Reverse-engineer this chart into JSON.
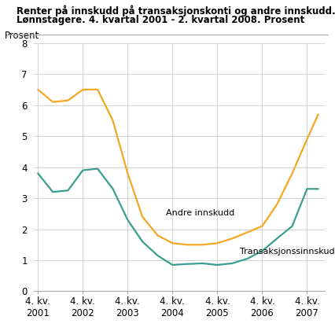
{
  "title_line1": "Renter på innskudd på transaksjonskonti og andre innskudd.",
  "title_line2": "Lønnstagere. 4. kvartal 2001 - 2. kvartal 2008. Prosent",
  "ylabel": "Prosent",
  "ylim": [
    0,
    8
  ],
  "yticks": [
    0,
    1,
    2,
    3,
    4,
    5,
    6,
    7,
    8
  ],
  "andre_innskudd_label": "Andre innskudd",
  "transaksjons_label": "Transaksjonssinnskudd",
  "andre_color": "#F5A623",
  "trans_color": "#3A9E8F",
  "x_tick_labels": [
    "4. kv.\n2001",
    "4. kv.\n2002",
    "4. kv.\n2003",
    "4. kv.\n2004",
    "4. kv.\n2005",
    "4. kv.\n2006",
    "4. kv.\n2007"
  ],
  "andre_x": [
    0,
    0.33,
    0.67,
    1.0,
    1.33,
    1.67,
    2.0,
    2.33,
    2.67,
    3.0,
    3.33,
    3.67,
    4.0,
    4.33,
    4.67,
    5.0,
    5.33,
    5.67,
    6.0,
    6.25
  ],
  "andre_y": [
    6.5,
    6.1,
    6.15,
    6.5,
    6.5,
    5.5,
    3.8,
    2.4,
    1.8,
    1.55,
    1.5,
    1.5,
    1.55,
    1.7,
    1.9,
    2.1,
    2.8,
    3.8,
    4.9,
    5.7
  ],
  "trans_x": [
    0,
    0.33,
    0.67,
    1.0,
    1.33,
    1.67,
    2.0,
    2.33,
    2.67,
    3.0,
    3.33,
    3.67,
    4.0,
    4.33,
    4.67,
    5.0,
    5.33,
    5.67,
    6.0,
    6.25
  ],
  "trans_y": [
    3.8,
    3.2,
    3.25,
    3.9,
    3.95,
    3.3,
    2.3,
    1.6,
    1.15,
    0.85,
    0.88,
    0.9,
    0.85,
    0.9,
    1.05,
    1.3,
    1.7,
    2.1,
    3.3,
    3.3
  ],
  "x_tick_positions": [
    0,
    1,
    2,
    3,
    4,
    5,
    6
  ],
  "background_color": "#ffffff",
  "grid_color": "#cccccc",
  "spine_color": "#aaaaaa"
}
